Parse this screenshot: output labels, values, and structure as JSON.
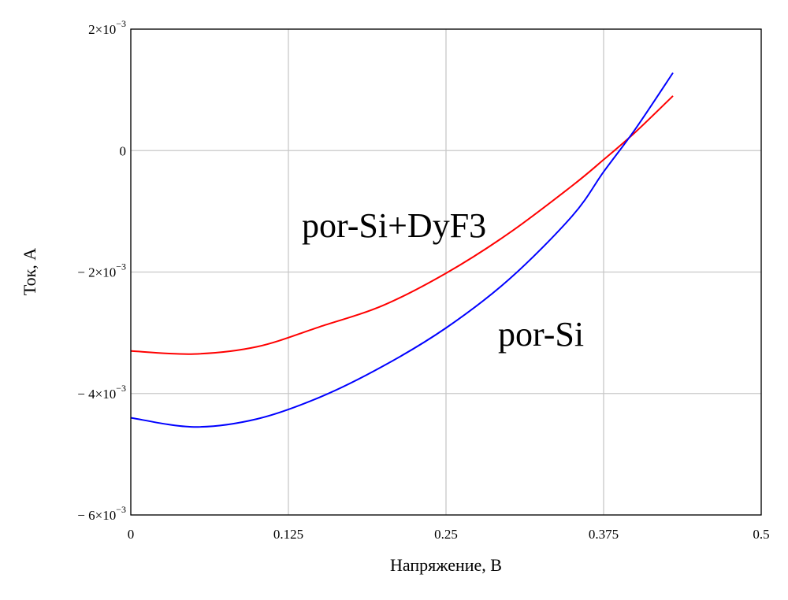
{
  "chart_data": {
    "type": "line",
    "xlabel": "Напряжение, В",
    "ylabel": "Ток, А",
    "xlim": [
      0,
      0.5
    ],
    "ylim": [
      -0.006,
      0.002
    ],
    "grid": true,
    "x_ticks": [
      {
        "value": 0,
        "label": "0"
      },
      {
        "value": 0.125,
        "label": "0.125"
      },
      {
        "value": 0.25,
        "label": "0.25"
      },
      {
        "value": 0.375,
        "label": "0.375"
      },
      {
        "value": 0.5,
        "label": "0.5"
      }
    ],
    "y_ticks": [
      {
        "value": 0.002,
        "mantissa": "2×10",
        "exponent": "−3"
      },
      {
        "value": 0,
        "mantissa": "0",
        "exponent": ""
      },
      {
        "value": -0.002,
        "mantissa": "− 2×10",
        "exponent": "−3"
      },
      {
        "value": -0.004,
        "mantissa": "− 4×10",
        "exponent": "−3"
      },
      {
        "value": -0.006,
        "mantissa": "− 6×10",
        "exponent": "−3"
      }
    ],
    "series": [
      {
        "name": "por-Si+DyF3",
        "color": "#ff0000",
        "x": [
          0.0,
          0.05,
          0.1,
          0.15,
          0.2,
          0.25,
          0.3,
          0.35,
          0.375,
          0.4,
          0.43
        ],
        "y": [
          -0.0033,
          -0.00335,
          -0.00323,
          -0.0029,
          -0.00255,
          -0.00202,
          -0.00136,
          -0.00058,
          -0.00015,
          0.0003,
          0.0009
        ]
      },
      {
        "name": "por-Si",
        "color": "#0000ff",
        "x": [
          0.0,
          0.05,
          0.1,
          0.15,
          0.2,
          0.25,
          0.3,
          0.35,
          0.375,
          0.4,
          0.43
        ],
        "y": [
          -0.0044,
          -0.00455,
          -0.00442,
          -0.00406,
          -0.00355,
          -0.00292,
          -0.00212,
          -0.00108,
          -0.00035,
          0.00035,
          0.00128
        ]
      }
    ],
    "annotations": [
      {
        "text": "por-Si+DyF3"
      },
      {
        "text": "por-Si"
      }
    ]
  }
}
